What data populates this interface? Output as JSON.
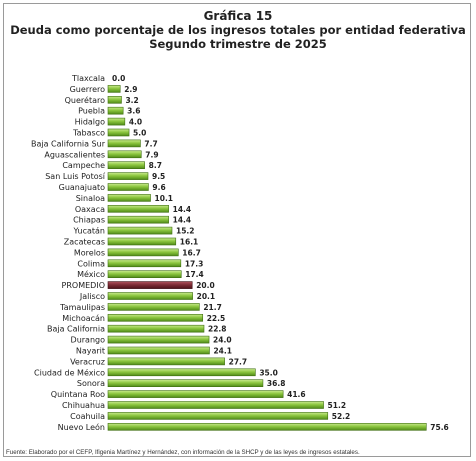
{
  "chart_data": {
    "type": "bar",
    "orientation": "horizontal",
    "title": "Gráfica 15",
    "subtitle": "Deuda como porcentaje de los ingresos totales por entidad federativa",
    "subtitle2": "Segundo trimestre de 2025",
    "categories": [
      "Tlaxcala",
      "Guerrero",
      "Querétaro",
      "Puebla",
      "Hidalgo",
      "Tabasco",
      "Baja California Sur",
      "Aguascalientes",
      "Campeche",
      "San Luis Potosí",
      "Guanajuato",
      "Sinaloa",
      "Oaxaca",
      "Chiapas",
      "Yucatán",
      "Zacatecas",
      "Morelos",
      "Colima",
      "México",
      "PROMEDIO",
      "Jalisco",
      "Tamaulipas",
      "Michoacán",
      "Baja California",
      "Durango",
      "Nayarit",
      "Veracruz",
      "Ciudad de México",
      "Sonora",
      "Quintana Roo",
      "Chihuahua",
      "Coahuila",
      "Nuevo León"
    ],
    "values": [
      0.0,
      2.9,
      3.2,
      3.6,
      4.0,
      5.0,
      7.7,
      7.9,
      8.7,
      9.5,
      9.6,
      10.1,
      14.4,
      14.4,
      15.2,
      16.1,
      16.7,
      17.3,
      17.4,
      20.0,
      20.1,
      21.7,
      22.5,
      22.8,
      24.0,
      24.1,
      27.7,
      35.0,
      36.8,
      41.6,
      51.2,
      52.2,
      75.6
    ],
    "value_labels": [
      "0.0",
      "2.9",
      "3.2",
      "3.6",
      "4.0",
      "5.0",
      "7.7",
      "7.9",
      "8.7",
      "9.5",
      "9.6",
      "10.1",
      "14.4",
      "14.4",
      "15.2",
      "16.1",
      "16.7",
      "17.3",
      "17.4",
      "20.0",
      "20.1",
      "21.7",
      "22.5",
      "22.8",
      "24.0",
      "24.1",
      "27.7",
      "35.0",
      "36.8",
      "41.6",
      "51.2",
      "52.2",
      "75.6"
    ],
    "highlight_category": "PROMEDIO",
    "xlim": [
      0,
      80
    ],
    "grid": false,
    "legend": false,
    "bar_color": "#8cc63f",
    "highlight_color": "#7a2a33"
  },
  "source": "Fuente: Elaborado por el CEFP, Ifigenia Martínez y Hernández, con información de la SHCP y de las leyes de ingresos estatales."
}
